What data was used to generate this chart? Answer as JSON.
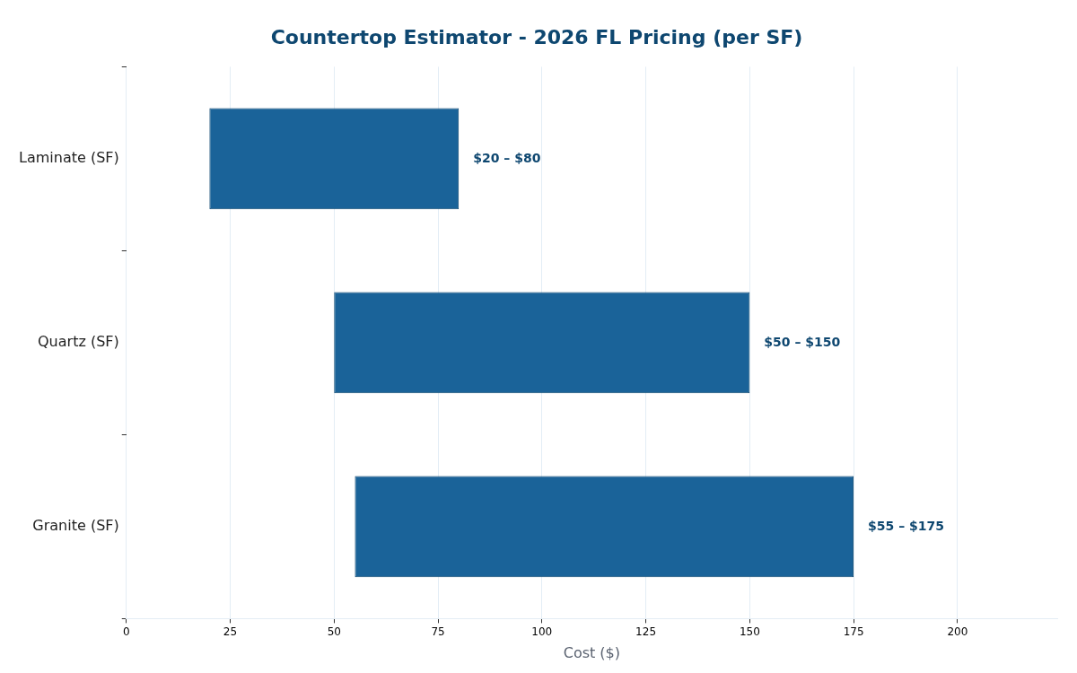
{
  "chart_data": {
    "type": "bar",
    "orientation": "horizontal",
    "title": "Countertop Estimator - 2026 FL Pricing (per SF)",
    "xlabel": "Cost ($)",
    "categories": [
      "Laminate (SF)",
      "Quartz (SF)",
      "Granite (SF)"
    ],
    "series": [
      {
        "color": "#1a6399",
        "base": [
          20,
          50,
          55
        ],
        "values": [
          60,
          100,
          120
        ]
      }
    ],
    "annotations": [
      {
        "text": "$20 – $80",
        "x": 80,
        "y": "Laminate (SF)"
      },
      {
        "text": "$50 – $150",
        "x": 150,
        "y": "Quartz (SF)"
      },
      {
        "text": "$55 – $175",
        "x": 175,
        "y": "Granite (SF)"
      }
    ],
    "xlim": [
      0,
      224
    ],
    "xticks": [
      0,
      25,
      50,
      75,
      100,
      125,
      150,
      175,
      200
    ],
    "grid": "x",
    "legend": false
  }
}
